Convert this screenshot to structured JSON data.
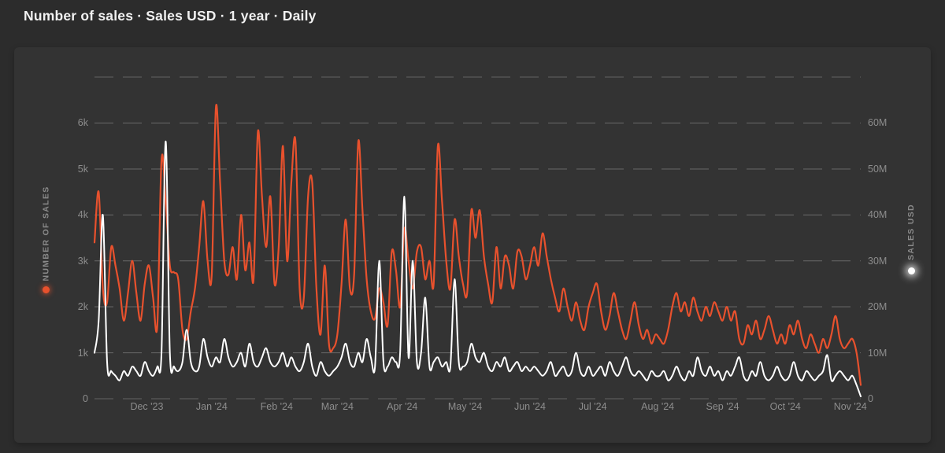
{
  "header": {
    "title": "Number of sales · Sales USD · 1 year · Daily"
  },
  "colors": {
    "page_background": "#2c2c2c",
    "card_background": "#333333",
    "gridline": "rgba(255,255,255,0.24)",
    "tick_label": "#8d8d8d",
    "series_sales": "#e8512d",
    "series_usd": "#ffffff"
  },
  "chart_data": {
    "type": "line",
    "title": "Number of sales · Sales USD · 1 year · Daily",
    "period": "1 year",
    "granularity": "Daily",
    "grid": "horizontal dashed, top unlabeled gridline at 7k / 70M",
    "legend_position": "rotated labels on left and right axes with colored dots",
    "x_axis": {
      "tick_labels": [
        "Dec '23",
        "Jan '24",
        "Feb '24",
        "Mar '24",
        "Apr '24",
        "May '24",
        "Jun '24",
        "Jul '24",
        "Aug '24",
        "Sep '24",
        "Oct '24",
        "Nov '24"
      ],
      "tick_day_offsets": [
        25,
        56,
        87,
        116,
        147,
        177,
        208,
        238,
        269,
        300,
        330,
        361
      ],
      "total_days": 366,
      "point_step_days": 2
    },
    "left_axis": {
      "label": "NUMBER OF SALES",
      "tick_labels": [
        "0",
        "1k",
        "2k",
        "3k",
        "4k",
        "5k",
        "6k"
      ],
      "tick_values": [
        0,
        1000,
        2000,
        3000,
        4000,
        5000,
        6000
      ],
      "scale_max": 7000
    },
    "right_axis": {
      "label": "SALES USD",
      "tick_labels": [
        "0",
        "10M",
        "20M",
        "30M",
        "40M",
        "50M",
        "60M"
      ],
      "tick_values_millions": [
        0,
        10,
        20,
        30,
        40,
        50,
        60
      ],
      "scale_max_millions": 70
    },
    "series": [
      {
        "name": "Number of sales",
        "axis": "left",
        "color": "#e8512d",
        "values": [
          3400,
          4500,
          2400,
          2100,
          3300,
          2900,
          2400,
          1700,
          2300,
          3000,
          2300,
          1700,
          2500,
          2900,
          2200,
          1600,
          5200,
          4300,
          2900,
          2750,
          2600,
          1500,
          1300,
          1900,
          2400,
          3300,
          4300,
          3000,
          2700,
          6350,
          4700,
          3000,
          2700,
          3300,
          2600,
          4000,
          2800,
          3400,
          2600,
          5800,
          4400,
          3300,
          4400,
          2500,
          3300,
          5500,
          3000,
          4700,
          5600,
          2400,
          2200,
          4400,
          4700,
          2400,
          1400,
          2900,
          1200,
          1100,
          1400,
          2500,
          3900,
          2400,
          2700,
          5600,
          4100,
          2600,
          1900,
          1750,
          2400,
          2100,
          1600,
          3200,
          2800,
          2000,
          3700,
          3000,
          2400,
          3200,
          3300,
          2600,
          3000,
          2500,
          5500,
          4300,
          3000,
          2400,
          3900,
          3100,
          2500,
          2300,
          4100,
          3500,
          4100,
          3100,
          2500,
          2100,
          3300,
          2400,
          3100,
          2900,
          2400,
          3200,
          3100,
          2600,
          2900,
          3300,
          2900,
          3600,
          3100,
          2600,
          2200,
          1900,
          2400,
          2000,
          1700,
          2100,
          1700,
          1500,
          2000,
          2300,
          2500,
          1900,
          1500,
          1800,
          2300,
          1900,
          1500,
          1300,
          1700,
          2100,
          1600,
          1300,
          1500,
          1200,
          1400,
          1300,
          1200,
          1500,
          2000,
          2300,
          1900,
          2100,
          1800,
          2200,
          1900,
          1700,
          2000,
          1800,
          2100,
          1900,
          1700,
          2000,
          1700,
          1900,
          1300,
          1200,
          1600,
          1400,
          1700,
          1300,
          1500,
          1800,
          1500,
          1200,
          1400,
          1200,
          1600,
          1400,
          1700,
          1300,
          1100,
          1400,
          1200,
          1000,
          1300,
          1100,
          1400,
          1800,
          1300,
          1100,
          1200,
          1300,
          1000,
          300
        ]
      },
      {
        "name": "Sales USD",
        "axis": "right",
        "unit": "millions USD",
        "color": "#ffffff",
        "values": [
          10,
          17,
          40,
          8,
          6,
          5,
          4,
          6,
          5,
          7,
          6,
          5,
          8,
          6,
          5,
          7,
          10,
          56,
          10,
          7,
          6,
          8,
          15,
          8,
          6,
          7,
          13,
          9,
          7,
          9,
          8,
          13,
          9,
          7,
          8,
          10,
          7,
          12,
          8,
          7,
          9,
          11,
          8,
          7,
          8,
          10,
          7,
          9,
          7,
          6,
          8,
          12,
          7,
          5,
          8,
          6,
          5,
          6,
          7,
          9,
          12,
          8,
          7,
          10,
          8,
          13,
          9,
          7,
          30,
          8,
          7,
          9,
          8,
          10,
          44,
          9,
          30,
          8,
          10,
          22,
          7,
          8,
          9,
          7,
          8,
          7,
          26,
          8,
          7,
          8,
          12,
          9,
          8,
          10,
          7,
          6,
          8,
          7,
          9,
          6,
          7,
          8,
          6,
          7,
          6,
          7,
          6,
          5,
          6,
          8,
          5,
          6,
          7,
          5,
          6,
          10,
          6,
          5,
          7,
          5,
          6,
          7,
          5,
          8,
          6,
          5,
          7,
          9,
          6,
          5,
          6,
          5,
          4,
          6,
          5,
          5,
          6,
          4,
          5,
          7,
          5,
          4,
          6,
          5,
          9,
          6,
          5,
          7,
          5,
          6,
          4,
          6,
          5,
          7,
          9,
          5,
          4,
          6,
          5,
          8,
          5,
          4,
          5,
          7,
          5,
          4,
          5,
          8,
          5,
          4,
          6,
          5,
          4,
          5,
          6,
          9.5,
          4,
          5,
          6,
          5,
          4,
          5,
          3,
          0.5
        ]
      }
    ]
  }
}
